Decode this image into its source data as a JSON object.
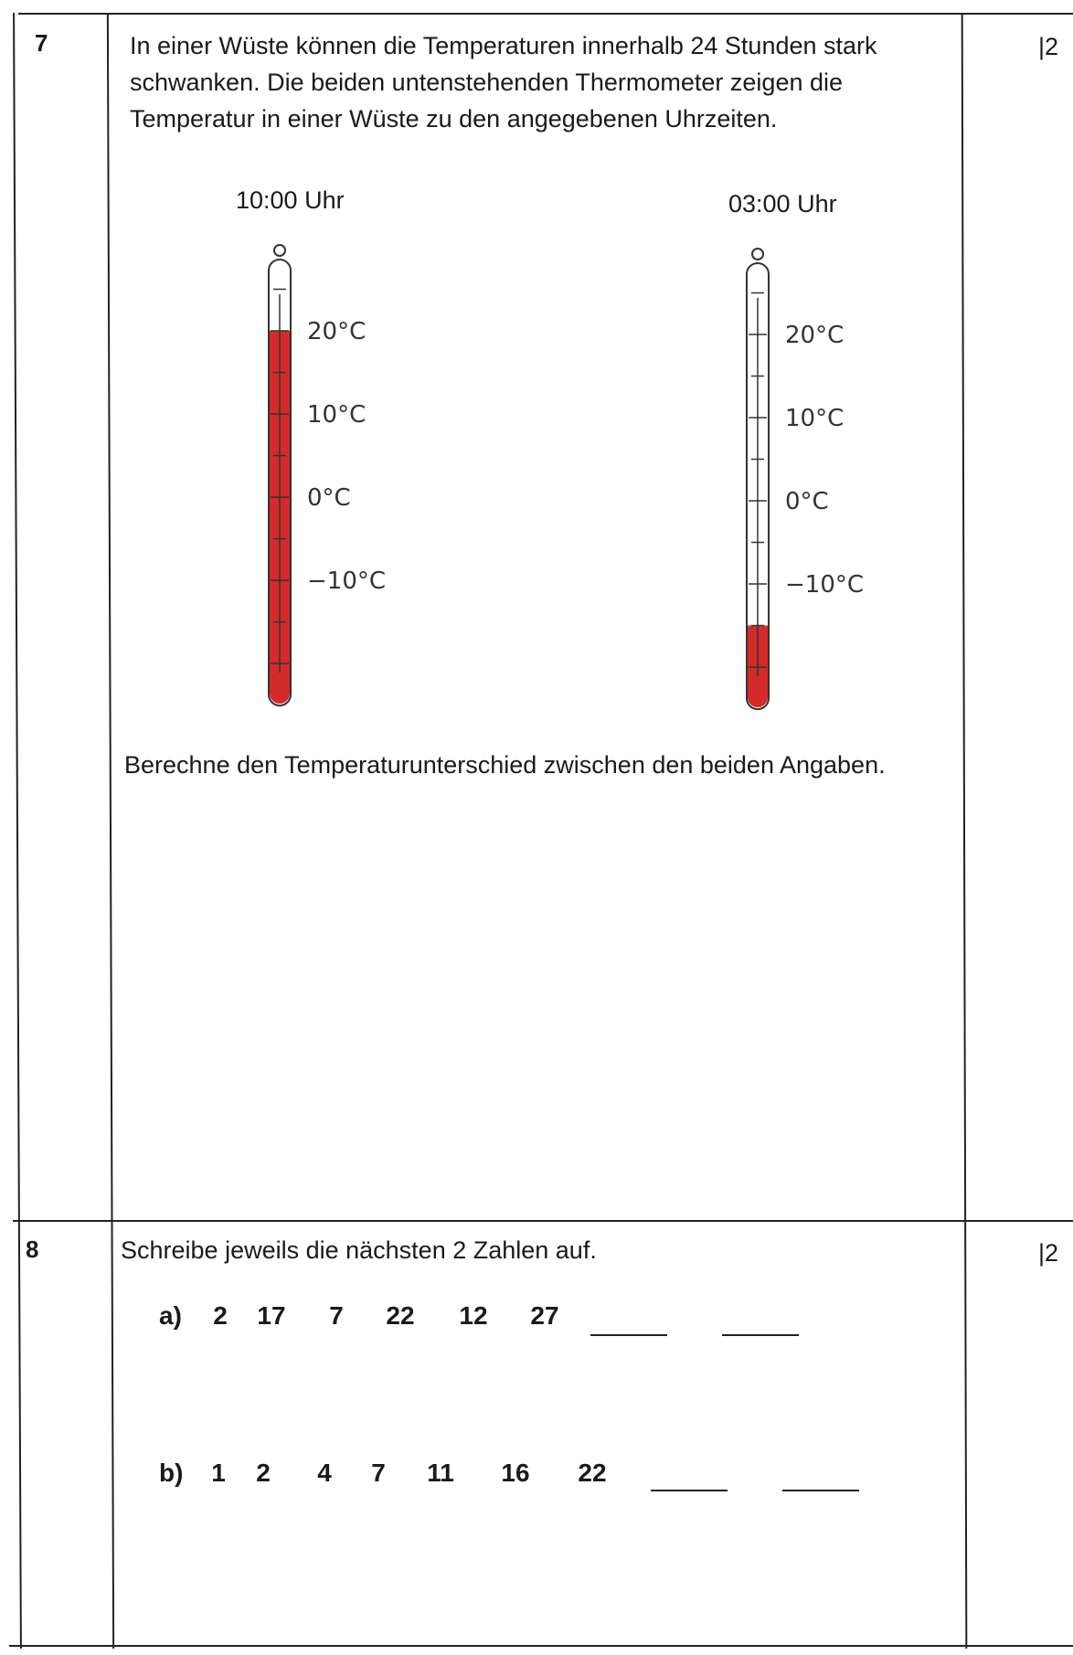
{
  "tasks": [
    {
      "number": "7",
      "points": "|2",
      "intro": "In einer Wüste können die Temperaturen innerhalb 24 Stunden stark schwanken. Die beiden untenstehenden Thermometer zeigen die Temperatur in einer Wüste zu den angegebenen Uhrzeiten.",
      "thermometers": [
        {
          "time": "10:00 Uhr",
          "reading_celsius": 20,
          "fill_color": "#d42a2a",
          "scale_labels": [
            "20°C",
            "10°C",
            "0°C",
            "−10°C"
          ]
        },
        {
          "time": "03:00 Uhr",
          "reading_celsius": -15,
          "fill_color": "#d42a2a",
          "scale_labels": [
            "20°C",
            "10°C",
            "0°C",
            "−10°C"
          ]
        }
      ],
      "question": "Berechne den Temperaturunterschied zwischen den beiden Angaben."
    },
    {
      "number": "8",
      "points": "|2",
      "instruction": "Schreibe jeweils die nächsten 2 Zahlen auf.",
      "sequences": [
        {
          "label": "a)",
          "values": [
            "2",
            "17",
            "7",
            "22",
            "12",
            "27"
          ]
        },
        {
          "label": "b)",
          "values": [
            "1",
            "2",
            "4",
            "7",
            "11",
            "16",
            "22"
          ]
        }
      ]
    }
  ]
}
